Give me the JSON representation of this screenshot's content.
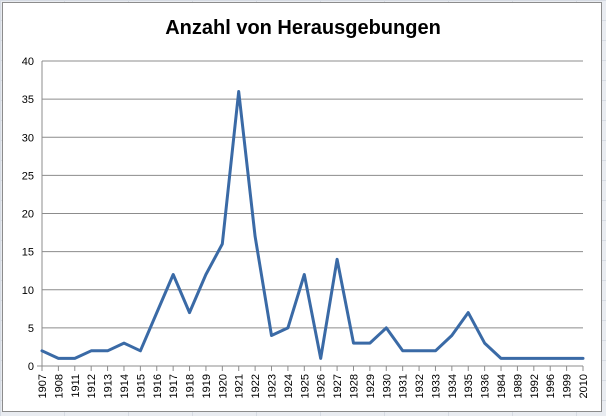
{
  "chart_data": {
    "type": "line",
    "title": "Anzahl von Herausgebungen",
    "xlabel": "",
    "ylabel": "",
    "ylim": [
      0,
      40
    ],
    "yticks": [
      "0",
      "5",
      "10",
      "15",
      "20",
      "25",
      "30",
      "35",
      "40"
    ],
    "grid": true,
    "legend": "none",
    "categories": [
      "1907",
      "1908",
      "1911",
      "1912",
      "1913",
      "1914",
      "1915",
      "1916",
      "1917",
      "1918",
      "1919",
      "1920",
      "1921",
      "1922",
      "1923",
      "1924",
      "1925",
      "1926",
      "1927",
      "1928",
      "1929",
      "1930",
      "1931",
      "1932",
      "1933",
      "1934",
      "1935",
      "1936",
      "1984",
      "1989",
      "1992",
      "1996",
      "1999",
      "2010"
    ],
    "series": [
      {
        "values": [
          2,
          1,
          1,
          2,
          2,
          3,
          2,
          7,
          12,
          7,
          12,
          16,
          36,
          17,
          4,
          5,
          12,
          1,
          14,
          3,
          3,
          5,
          2,
          2,
          2,
          4,
          7,
          3,
          1,
          1,
          1,
          1,
          1,
          1
        ]
      }
    ],
    "colors": {
      "line": "#3a6aa6",
      "grid": "#8c8c8c"
    }
  }
}
